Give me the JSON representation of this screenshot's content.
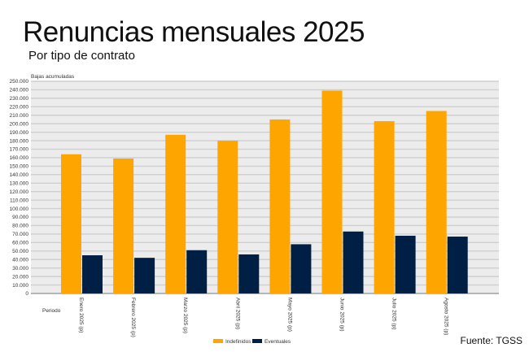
{
  "title": "Renuncias mensuales 2025",
  "subtitle": "Por tipo de contrato",
  "source": "Fuente: TGSS",
  "chart_data": {
    "type": "bar",
    "ylabel": "Bajas acumuladas",
    "xlabel": "Periodo",
    "ylim": [
      0,
      250000
    ],
    "ytick_step": 10000,
    "grid": true,
    "legend_position": "bottom",
    "categories": [
      "Enero 2025 (p)",
      "Febrero 2025 (p)",
      "Marzo 2025 (p)",
      "Abril 2025 (p)",
      "Mayo 2025 (p)",
      "Junio 2025 (p)",
      "Julio 2025 (p)",
      "Agosto 2025 (p)"
    ],
    "series": [
      {
        "name": "Indefinidos",
        "color": "#FFA500",
        "values": [
          164000,
          159000,
          187000,
          180000,
          205000,
          239000,
          203000,
          215000
        ]
      },
      {
        "name": "Eventuales",
        "color": "#001F45",
        "values": [
          45000,
          42000,
          51000,
          46000,
          58000,
          73000,
          68000,
          67000
        ]
      }
    ]
  }
}
